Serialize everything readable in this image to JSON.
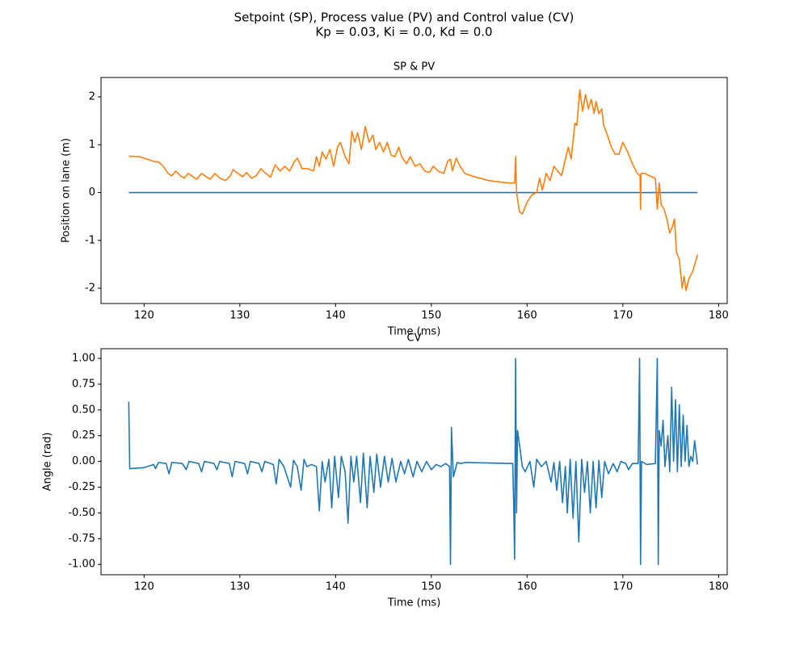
{
  "title": [
    "Setpoint (SP), Process value (PV) and Control value (CV)",
    "Kp = 0.03, Ki = 0.0, Kd = 0.0"
  ],
  "chart_data": [
    {
      "type": "line",
      "title": "SP & PV",
      "x_label": "Time (ms)",
      "y_label": "Position on lane (m)",
      "xlim": [
        115.5,
        180.9
      ],
      "ylim": [
        -2.32,
        2.405
      ],
      "xticks": [
        120,
        130,
        140,
        150,
        160,
        170,
        180
      ],
      "yticks": [
        -2,
        -1,
        0,
        1,
        2
      ],
      "series": [
        {
          "color": "#1f77b4",
          "x": [
            118.4,
            177.8
          ],
          "values": [
            0,
            0
          ]
        },
        {
          "color": "#ff7f0e",
          "x": [
            118.4,
            119.5,
            120.3,
            121,
            121.5,
            122,
            122.5,
            122.9,
            123.3,
            123.8,
            124.2,
            124.6,
            125.1,
            125.5,
            126,
            126.5,
            126.9,
            127.4,
            127.9,
            128.5,
            129,
            129.3,
            129.8,
            130.3,
            130.7,
            131.2,
            131.7,
            132.2,
            132.7,
            133.2,
            133.7,
            134.2,
            134.7,
            135.2,
            135.7,
            136.0,
            136.5,
            137.1,
            137.7,
            138,
            138.3,
            138.6,
            139,
            139.4,
            139.8,
            140.2,
            140.5,
            141,
            141.4,
            141.7,
            142,
            142.3,
            142.7,
            143.1,
            143.5,
            143.9,
            144.2,
            144.6,
            145.0,
            145.4,
            145.8,
            146.2,
            146.6,
            146.9,
            147.4,
            147.8,
            148.3,
            148.8,
            149.3,
            149.8,
            150.2,
            150.7,
            151.3,
            151.7,
            152.0,
            152.2,
            152.6,
            153,
            153.5,
            154.5,
            156,
            158,
            158.7,
            158.8,
            158.9,
            159.2,
            159.5,
            160,
            160.5,
            161,
            161.3,
            161.6,
            162,
            162.4,
            162.8,
            163.2,
            163.6,
            164,
            164.3,
            164.6,
            165,
            165.2,
            165.5,
            165.8,
            166.1,
            166.4,
            166.7,
            167,
            167.2,
            167.5,
            167.8,
            168,
            168.3,
            168.8,
            169.2,
            169.6,
            170,
            170.5,
            171,
            171.5,
            171.8,
            171.85,
            171.9,
            172.3,
            172.8,
            173.4,
            173.6,
            173.8,
            174,
            174.3,
            174.6,
            174.9,
            175.2,
            175.4,
            175.6,
            175.9,
            176.2,
            176.4,
            176.6,
            176.9,
            177.3,
            177.8
          ],
          "values": [
            0.76,
            0.75,
            0.7,
            0.65,
            0.64,
            0.55,
            0.4,
            0.35,
            0.45,
            0.35,
            0.3,
            0.4,
            0.33,
            0.28,
            0.4,
            0.33,
            0.28,
            0.4,
            0.3,
            0.25,
            0.35,
            0.48,
            0.4,
            0.33,
            0.42,
            0.3,
            0.35,
            0.5,
            0.4,
            0.32,
            0.58,
            0.45,
            0.55,
            0.45,
            0.65,
            0.72,
            0.5,
            0.5,
            0.45,
            0.75,
            0.55,
            0.85,
            0.7,
            0.9,
            0.55,
            0.95,
            1.05,
            0.75,
            0.6,
            1.28,
            1.05,
            1.25,
            0.9,
            1.38,
            1.05,
            1.2,
            0.9,
            1.05,
            0.85,
            1.05,
            0.78,
            0.75,
            0.95,
            0.75,
            0.6,
            0.75,
            0.55,
            0.6,
            0.45,
            0.42,
            0.55,
            0.45,
            0.4,
            0.65,
            0.7,
            0.45,
            0.72,
            0.55,
            0.4,
            0.33,
            0.25,
            0.2,
            0.2,
            0.75,
            0.0,
            -0.4,
            -0.45,
            -0.2,
            -0.05,
            0.0,
            0.3,
            0.05,
            0.4,
            0.25,
            0.55,
            0.45,
            0.35,
            0.7,
            0.95,
            0.7,
            1.45,
            1.4,
            2.15,
            1.7,
            2.05,
            1.75,
            1.95,
            1.65,
            1.9,
            1.65,
            1.75,
            1.4,
            1.25,
            0.95,
            0.8,
            0.8,
            1.05,
            0.85,
            0.6,
            0.4,
            0.35,
            -0.35,
            0.4,
            0.4,
            0.35,
            0.3,
            -0.35,
            0.2,
            -0.25,
            -0.35,
            -0.55,
            -0.85,
            -0.7,
            -0.55,
            -1.25,
            -1.4,
            -2.0,
            -1.75,
            -2.05,
            -1.8,
            -1.65,
            -1.3
          ]
        }
      ]
    },
    {
      "type": "line",
      "title": "CV",
      "x_label": "Time (ms)",
      "y_label": "Angle (rad)",
      "xlim": [
        115.5,
        180.9
      ],
      "ylim": [
        -1.1,
        1.094
      ],
      "xticks": [
        120,
        130,
        140,
        150,
        160,
        170,
        180
      ],
      "yticks": [
        {
          "value": 1,
          "label": "1.00"
        },
        0.75,
        {
          "value": 0.5,
          "label": "0.50"
        },
        0.25,
        {
          "value": 0,
          "label": "0.00"
        },
        -0.25,
        {
          "value": -0.5,
          "label": "-0.50"
        },
        -0.75,
        {
          "value": -1,
          "label": "-1.00"
        }
      ],
      "series": [
        {
          "color": "#1f77b4",
          "x": [
            118.4,
            118.5,
            120,
            121,
            121.2,
            121.5,
            122.3,
            122.6,
            122.9,
            124,
            124.4,
            124.7,
            125.7,
            126,
            126.3,
            127.3,
            127.6,
            127.9,
            128.9,
            129.2,
            129.5,
            130.5,
            130.8,
            131.1,
            132,
            132.3,
            132.6,
            133.5,
            133.8,
            134.1,
            134.6,
            135.3,
            135.6,
            136,
            136.4,
            136.7,
            137,
            137.5,
            138.0,
            138.3,
            138.6,
            138.9,
            139.3,
            139.6,
            139.9,
            140.3,
            140.6,
            141,
            141.3,
            141.6,
            141.9,
            142.2,
            142.6,
            142.9,
            143.3,
            143.6,
            144,
            144.3,
            144.7,
            145.1,
            145.5,
            145.9,
            146.3,
            146.8,
            147.2,
            147.6,
            148.1,
            148.5,
            149,
            149.5,
            150,
            150.5,
            151,
            151.5,
            151.9,
            152.0,
            152.1,
            152.3,
            152.7,
            153,
            153.6,
            158.5,
            158.6,
            158.7,
            158.8,
            158.9,
            159.0,
            159.3,
            159.5,
            159.8,
            160.3,
            160.7,
            161,
            161.5,
            162,
            162.5,
            162.8,
            163.1,
            163.4,
            163.7,
            164,
            164.2,
            164.5,
            164.8,
            165.1,
            165.4,
            165.7,
            166,
            166.3,
            166.6,
            166.9,
            167.2,
            167.5,
            167.8,
            168.1,
            168.5,
            169,
            169.4,
            169.8,
            170.3,
            170.6,
            171,
            171.6,
            171.75,
            171.85,
            171.95,
            172.5,
            173.4,
            173.6,
            173.7,
            173.8,
            174,
            174.2,
            174.4,
            174.7,
            174.9,
            175.1,
            175.3,
            175.5,
            175.7,
            175.9,
            176.1,
            176.3,
            176.5,
            176.7,
            176.9,
            177.1,
            177.3,
            177.5,
            177.8
          ],
          "values": [
            0.58,
            -0.07,
            -0.06,
            -0.03,
            -0.07,
            -0.01,
            -0.02,
            -0.12,
            -0.01,
            -0.02,
            -0.08,
            0.0,
            -0.02,
            -0.1,
            0.0,
            -0.02,
            -0.08,
            0.0,
            -0.02,
            -0.15,
            0.0,
            -0.02,
            -0.12,
            0.0,
            -0.02,
            -0.1,
            0.0,
            -0.03,
            -0.22,
            0.02,
            -0.05,
            -0.25,
            0.01,
            -0.05,
            -0.28,
            0.02,
            -0.05,
            -0.03,
            -0.05,
            -0.48,
            0.0,
            -0.2,
            0.02,
            -0.45,
            0.05,
            -0.35,
            0.05,
            -0.1,
            -0.6,
            0.05,
            -0.2,
            0.05,
            -0.4,
            0.08,
            -0.45,
            0.05,
            -0.3,
            0.07,
            -0.25,
            0.05,
            -0.2,
            0.03,
            -0.2,
            0.0,
            -0.12,
            0.02,
            -0.15,
            0.0,
            -0.1,
            0.0,
            -0.08,
            -0.03,
            -0.05,
            -0.02,
            -0.05,
            -1.0,
            0.33,
            -0.15,
            -0.01,
            -0.02,
            -0.01,
            -0.02,
            -0.4,
            -0.95,
            1.0,
            -0.5,
            0.3,
            0.1,
            -0.05,
            -0.1,
            0.0,
            -0.25,
            0.02,
            -0.05,
            0.0,
            -0.2,
            -0.01,
            -0.28,
            0.0,
            -0.4,
            -0.05,
            -0.5,
            0.02,
            -0.55,
            0.0,
            -0.78,
            0.02,
            -0.3,
            0.0,
            -0.5,
            0.0,
            -0.45,
            0.01,
            -0.35,
            0.0,
            -0.12,
            -0.02,
            -0.1,
            0.0,
            -0.02,
            -0.08,
            -0.02,
            -0.02,
            1.0,
            -1.0,
            0.0,
            -0.03,
            -0.02,
            1.0,
            -1.0,
            0.3,
            0.15,
            0.4,
            -0.05,
            0.25,
            -0.1,
            0.72,
            0.0,
            0.6,
            -0.1,
            0.55,
            -0.05,
            0.45,
            0.0,
            0.35,
            -0.05,
            0.05,
            0.0,
            0.2,
            -0.03
          ]
        }
      ]
    }
  ]
}
